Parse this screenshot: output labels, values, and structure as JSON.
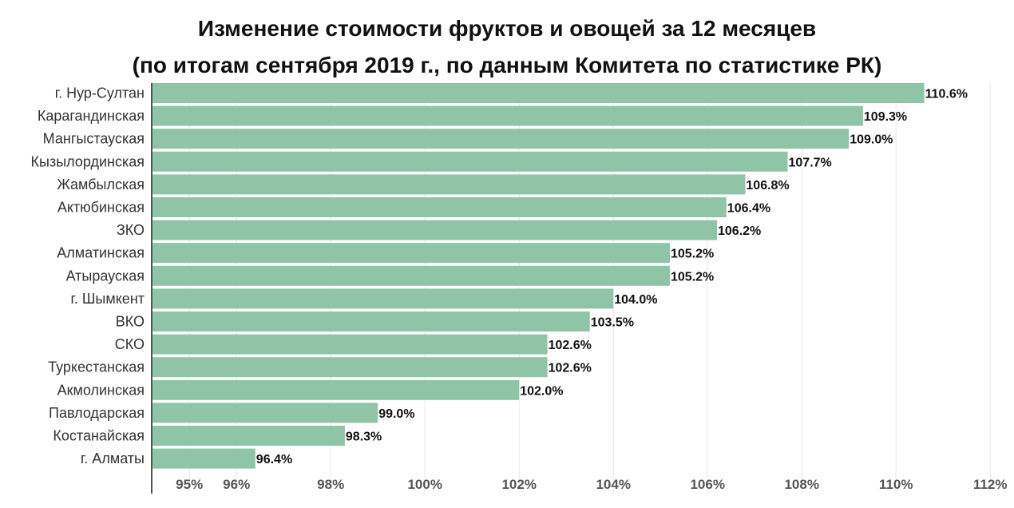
{
  "chart_data": {
    "type": "bar",
    "orientation": "horizontal",
    "title": "Изменение стоимости фруктов и овощей за 12 месяцев",
    "subtitle": "(по итогам сентября 2019 г., по данным Комитета по статистике РК)",
    "categories": [
      "г. Нур-Султан",
      "Карагандинская",
      "Мангыстауская",
      "Кызылординская",
      "Жамбылская",
      "Актюбинская",
      "ЗКО",
      "Алматинская",
      "Атырауская",
      "г. Шымкент",
      "ВКО",
      "СКО",
      "Туркестанская",
      "Акмолинская",
      "Павлодарская",
      "Костанайская",
      "г. Алматы"
    ],
    "values": [
      110.6,
      109.3,
      109.0,
      107.7,
      106.8,
      106.4,
      106.2,
      105.2,
      105.2,
      104.0,
      103.5,
      102.6,
      102.6,
      102.0,
      99.0,
      98.3,
      96.4
    ],
    "value_labels": [
      "110.6%",
      "109.3%",
      "109.0%",
      "107.7%",
      "106.8%",
      "106.4%",
      "106.2%",
      "105.2%",
      "105.2%",
      "104.0%",
      "103.5%",
      "102.6%",
      "102.6%",
      "102.0%",
      "99.0%",
      "98.3%",
      "96.4%"
    ],
    "x_ticks": [
      95,
      96,
      98,
      100,
      102,
      104,
      106,
      108,
      110,
      112
    ],
    "x_tick_labels": [
      "95%",
      "96%",
      "98%",
      "100%",
      "102%",
      "104%",
      "106%",
      "108%",
      "110%",
      "112%"
    ],
    "xlim": [
      94.2,
      112.2
    ],
    "xlabel": "",
    "ylabel": "",
    "grid": true,
    "bar_color": "#8fc4a7"
  }
}
